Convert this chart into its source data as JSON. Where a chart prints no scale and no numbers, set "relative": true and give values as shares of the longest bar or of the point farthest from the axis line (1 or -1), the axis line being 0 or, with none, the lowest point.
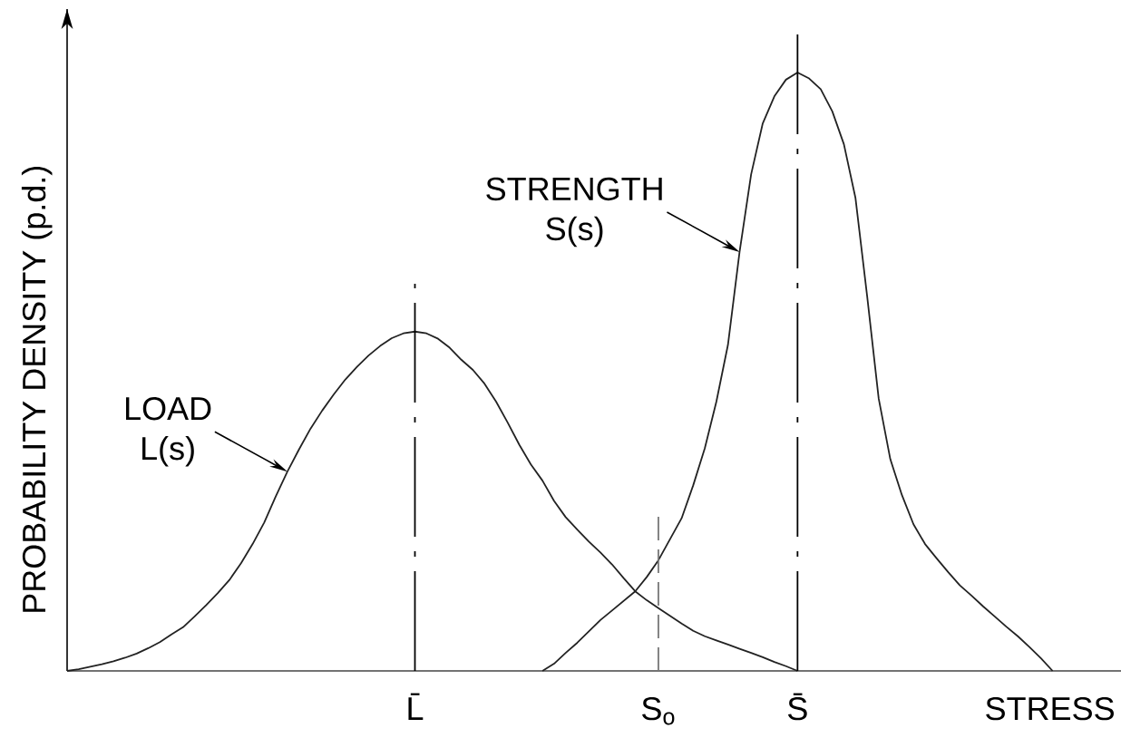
{
  "chart_data": {
    "type": "line",
    "relative": true,
    "xlabel": "STRESS",
    "ylabel": "PROBABILITY DENSITY (p.d.)",
    "categories": [
      null,
      null,
      null,
      null,
      null,
      null,
      null,
      null,
      null,
      null,
      null,
      null,
      null,
      null,
      null,
      null,
      null,
      null,
      null,
      null,
      null,
      null,
      null,
      null,
      null,
      null,
      null,
      null,
      null,
      null,
      "L̄",
      null,
      null,
      null,
      null,
      null,
      null,
      null,
      null,
      null,
      null,
      null,
      null,
      null,
      null,
      null,
      null,
      null,
      null,
      null,
      null,
      "S$_{o}$",
      null,
      null,
      null,
      null,
      null,
      null,
      null,
      null,
      null,
      null,
      null,
      "S̄",
      null,
      null,
      null,
      null,
      null,
      null,
      null,
      null,
      null,
      null,
      null,
      null,
      null,
      null,
      null,
      null,
      null,
      null,
      null,
      null,
      null,
      null,
      null,
      null,
      null,
      null,
      null
    ],
    "series": [
      {
        "name": "LOAD L(s)",
        "color": "#222222",
        "values": [
          0,
          0.003,
          0.007,
          0.011,
          0.016,
          0.022,
          0.029,
          0.038,
          0.048,
          0.061,
          0.073,
          0.091,
          0.11,
          0.13,
          0.152,
          0.18,
          0.212,
          0.248,
          0.292,
          0.333,
          0.37,
          0.405,
          0.435,
          0.462,
          0.487,
          0.508,
          0.527,
          0.543,
          0.556,
          0.564,
          0.567,
          0.564,
          0.555,
          0.54,
          0.52,
          0.503,
          0.48,
          0.45,
          0.415,
          0.378,
          0.345,
          0.318,
          0.284,
          0.257,
          0.236,
          0.216,
          0.198,
          0.178,
          0.155,
          0.133,
          0.118,
          0.105,
          0.092,
          0.079,
          0.067,
          0.058,
          0.051,
          0.044,
          0.037,
          0.03,
          0.023,
          0.015,
          0.008,
          0,
          null,
          null,
          null,
          null,
          null,
          null,
          null,
          null,
          null,
          null,
          null,
          null,
          null,
          null,
          null,
          null,
          null,
          null,
          null,
          null,
          null,
          null,
          null,
          null,
          null,
          null,
          null
        ]
      },
      {
        "name": "STRENGTH S(s)",
        "color": "#222222",
        "values": [
          null,
          null,
          null,
          null,
          null,
          null,
          null,
          null,
          null,
          null,
          null,
          null,
          null,
          null,
          null,
          null,
          null,
          null,
          null,
          null,
          null,
          null,
          null,
          null,
          null,
          null,
          null,
          null,
          null,
          null,
          null,
          null,
          null,
          null,
          null,
          null,
          null,
          null,
          null,
          null,
          null,
          0,
          0.012,
          0.03,
          0.047,
          0.066,
          0.085,
          0.101,
          0.117,
          0.133,
          0.157,
          0.185,
          0.22,
          0.255,
          0.31,
          0.372,
          0.45,
          0.545,
          0.7,
          0.83,
          0.915,
          0.96,
          0.988,
          1,
          0.99,
          0.972,
          0.935,
          0.88,
          0.79,
          0.627,
          0.455,
          0.354,
          0.294,
          0.245,
          0.212,
          0.188,
          0.165,
          0.143,
          0.126,
          0.108,
          0.091,
          0.074,
          0.058,
          0.04,
          0.021,
          0,
          null,
          null,
          null,
          null,
          null
        ]
      }
    ],
    "ref_lines": [
      {
        "axis": "x",
        "value": "L̄",
        "color": "#000000",
        "line_style": "dashdot"
      },
      {
        "axis": "x",
        "value": "S$_{o}$",
        "color": "#777777",
        "line_style": "dashed"
      },
      {
        "axis": "x",
        "value": "S̄",
        "color": "#000000",
        "line_style": "dashdot"
      }
    ]
  }
}
